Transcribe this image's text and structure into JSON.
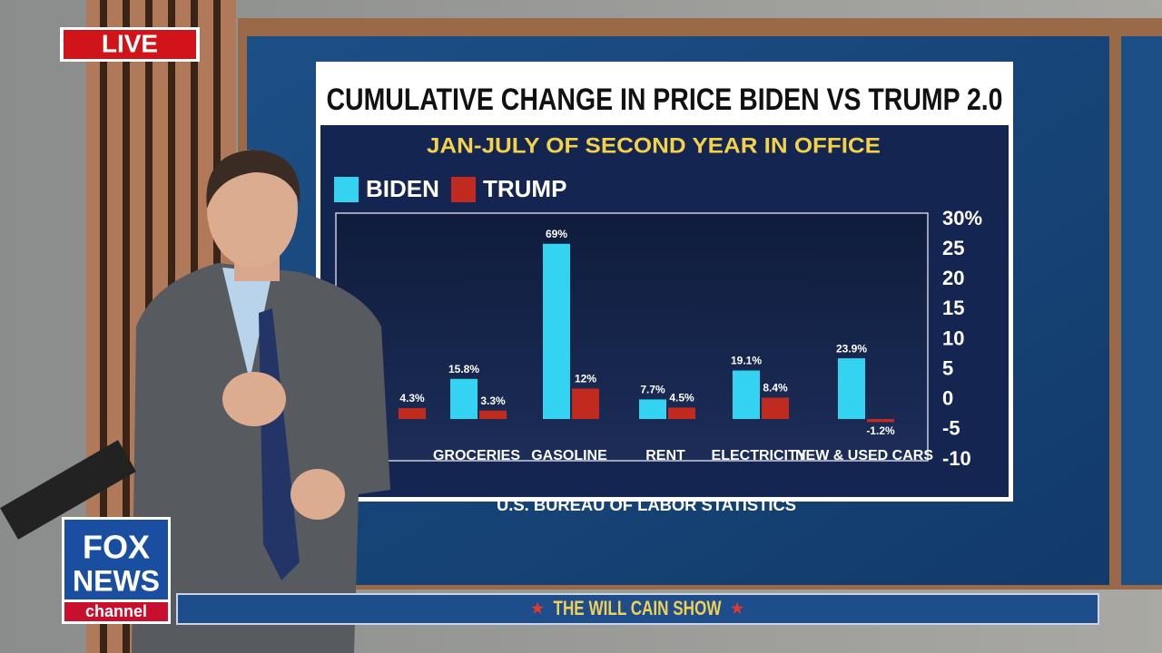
{
  "chart_data": {
    "type": "bar",
    "title": "CUMULATIVE CHANGE IN PRICE BIDEN VS TRUMP 2.0",
    "subtitle": "JAN-JULY OF SECOND YEAR IN OFFICE",
    "source": "U.S. BUREAU OF LABOR STATISTICS",
    "categories": [
      null,
      "GROCERIES",
      "GASOLINE",
      "RENT",
      "ELECTRICITY",
      "NEW & USED CARS"
    ],
    "series": [
      {
        "name": "BIDEN",
        "color": "#35d3f2",
        "values": [
          null,
          15.8,
          69,
          7.7,
          19.1,
          23.9
        ],
        "value_labels": [
          null,
          "15.8%",
          "69%",
          "7.7%",
          "19.1%",
          "23.9%"
        ]
      },
      {
        "name": "TRUMP",
        "color": "#c12a1e",
        "values": [
          4.3,
          3.3,
          12,
          4.5,
          8.4,
          -1.2
        ],
        "value_labels": [
          "4.3%",
          "3.3%",
          "12%",
          "4.5%",
          "8.4%",
          "-1.2%"
        ]
      }
    ],
    "ylim": [
      -10,
      30
    ],
    "yticks": [
      {
        "value": 30,
        "label": "30%"
      },
      25,
      20,
      15,
      10,
      5,
      0,
      -5,
      -10
    ],
    "legend": "top-left"
  },
  "overlay": {
    "live": "LIVE",
    "network": [
      "FOX",
      "NEWS",
      "channel"
    ],
    "show": "THE WILL CAIN SHOW"
  }
}
